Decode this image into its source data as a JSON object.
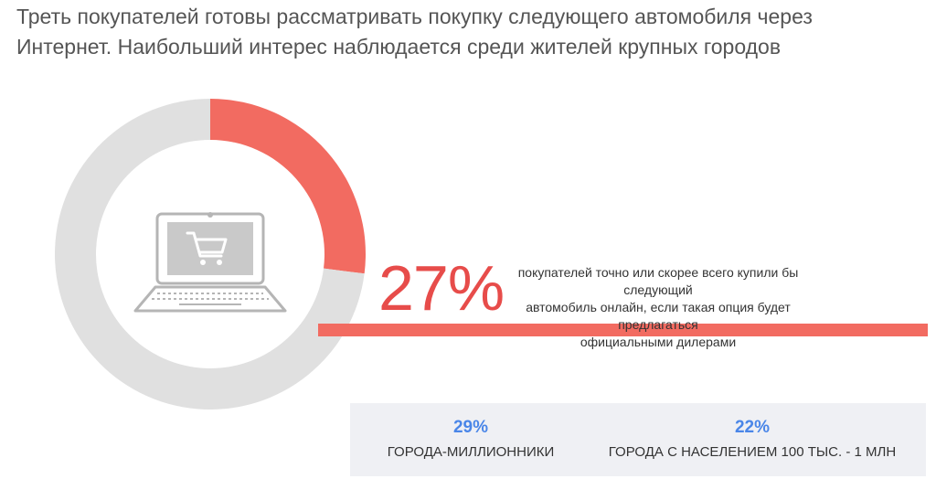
{
  "headline": {
    "line1": "Треть покупателей готовы рассматривать покупку следующего автомобиля через",
    "line2": "Интернет. Наибольший интерес наблюдается среди жителей крупных городов"
  },
  "chart_data": {
    "type": "pie",
    "variant": "donut",
    "slices": [
      {
        "label": "покупателей точно или скорее всего купили бы следующий автомобиль онлайн",
        "value": 27,
        "color": "#f26b61"
      },
      {
        "label": "",
        "value": 73,
        "color": "#e0e0e0"
      }
    ],
    "highlight": {
      "value_label": "27%",
      "caption_lines": [
        "покупателей точно или скорее всего купили бы следующий",
        "автомобиль онлайн, если такая опция будет предлагаться",
        "официальными дилерами"
      ]
    },
    "center_icon": "laptop-shopping-cart-icon"
  },
  "stats": [
    {
      "value": "29%",
      "label": "ГОРОДА-МИЛЛИОННИКИ"
    },
    {
      "value": "22%",
      "label": "ГОРОДА С НАСЕЛЕНИЕМ 100 ТЫС. - 1 МЛН"
    }
  ],
  "colors": {
    "accent": "#f26b61",
    "accent_text": "#e74c4a",
    "track": "#e0e0e0",
    "stat_value": "#4a86e8",
    "panel": "#eff0f4",
    "icon": "#b5b5b5"
  }
}
